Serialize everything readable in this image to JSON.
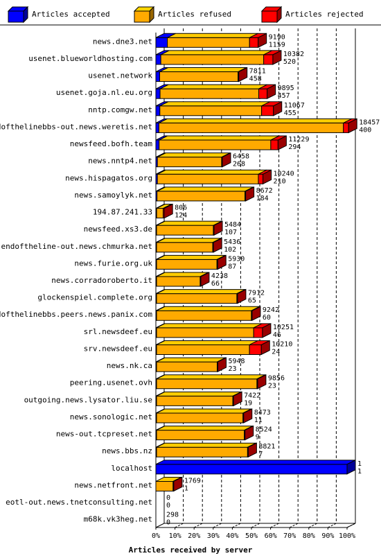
{
  "chart_data": {
    "type": "bar",
    "orientation": "horizontal",
    "stacked": true,
    "xlabel": "Articles received by server",
    "ticks": [
      "0%",
      "10%",
      "20%",
      "30%",
      "40%",
      "50%",
      "60%",
      "70%",
      "80%",
      "90%",
      "100%"
    ],
    "xlim": [
      0,
      100
    ],
    "grid": true,
    "legend_position": "top",
    "colors": {
      "accepted": "#0000ff",
      "refused": "#ffaa00",
      "rejected": "#ff0000"
    },
    "series": [
      {
        "name": "Articles accepted",
        "key": "accepted"
      },
      {
        "name": "Articles refused",
        "key": "refused"
      },
      {
        "name": "Articles rejected",
        "key": "rejected"
      }
    ],
    "categories": [
      "news.dne3.net",
      "usenet.blueworldhosting.com",
      "usenet.network",
      "usenet.goja.nl.eu.org",
      "nntp.comgw.net",
      "endofthelinebbs-out.news.weretis.net",
      "newsfeed.bofh.team",
      "news.nntp4.net",
      "news.hispagatos.org",
      "news.samoylyk.net",
      "194.87.241.33",
      "newsfeed.xs3.de",
      "endoftheline-out.news.chmurka.net",
      "news.furie.org.uk",
      "news.corradoroberto.it",
      "glockenspiel.complete.org",
      "endofthelinebbs.peers.news.panix.com",
      "srl.newsdeef.eu",
      "srv.newsdeef.eu",
      "news.nk.ca",
      "peering.usenet.ovh",
      "outgoing.news.lysator.liu.se",
      "news.sonologic.net",
      "news-out.tcpreset.net",
      "news.bbs.nz",
      "localhost",
      "news.netfront.net",
      "eotl-out.news.tnetconsulting.net",
      "m68k.vk3heg.net"
    ],
    "labels_top": [
      "9190",
      "10382",
      "7811",
      "9895",
      "11067",
      "18457",
      "11229",
      "6458",
      "10240",
      "8672",
      "806",
      "5484",
      "5436",
      "5930",
      "4238",
      "7912",
      "9242",
      "10251",
      "10210",
      "5948",
      "9856",
      "7422",
      "8473",
      "8524",
      "8821",
      "1",
      "1769",
      "0",
      "298"
    ],
    "labels_bottom": [
      "1159",
      "520",
      "458",
      "457",
      "455",
      "400",
      "294",
      "268",
      "210",
      "184",
      "124",
      "107",
      "102",
      "87",
      "66",
      "65",
      "60",
      "46",
      "24",
      "23",
      "23",
      "19",
      "11",
      "9",
      "7",
      "1",
      "1",
      "0",
      "0"
    ],
    "accepted": [
      6.0,
      2.6,
      2.0,
      2.2,
      2.1,
      1.6,
      1.7,
      0.8,
      0.8,
      0.6,
      0.4,
      0.2,
      0.2,
      0.1,
      0.1,
      0.1,
      0.1,
      0.1,
      0.1,
      0.05,
      0.05,
      0.05,
      0.05,
      0.05,
      0.05,
      100,
      0,
      0,
      0
    ],
    "refused": [
      43.0,
      53.8,
      41.0,
      51.6,
      53.2,
      96.5,
      58.4,
      33.6,
      52.8,
      46.0,
      3.4,
      29.7,
      29.4,
      31.6,
      22.8,
      42.0,
      49.6,
      50.8,
      48.6,
      31.7,
      52.5,
      39.9,
      45.2,
      45.9,
      47.6,
      0,
      9.0,
      0,
      0
    ],
    "rejected": [
      4.5,
      4.8,
      0.1,
      4.4,
      6.2,
      2.7,
      3.8,
      0.2,
      2.4,
      0.2,
      0.6,
      0.1,
      0.1,
      0.2,
      0.1,
      0.1,
      0.1,
      4.6,
      6.2,
      0.1,
      0.2,
      0.1,
      0.1,
      0.1,
      0.1,
      0,
      0.2,
      0,
      0
    ]
  }
}
